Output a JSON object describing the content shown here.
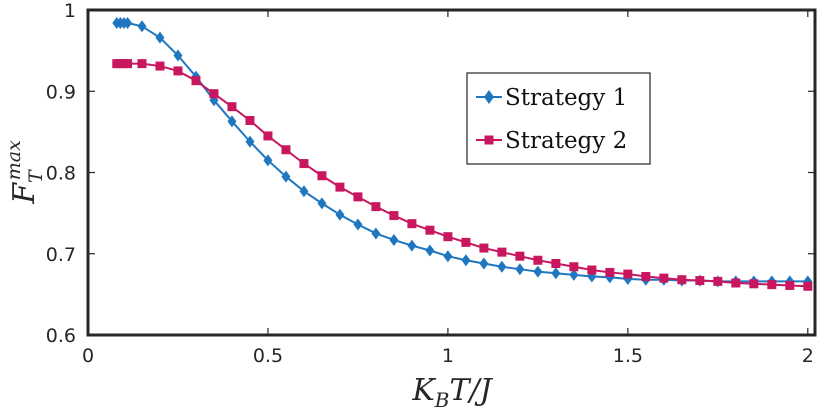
{
  "chart_data": {
    "type": "line",
    "title": "",
    "xlabel": "K_BT/J",
    "ylabel": "F_T^max",
    "xlim": [
      0,
      2.02
    ],
    "ylim": [
      0.6,
      1.0
    ],
    "grid": false,
    "legend_position": "top-right",
    "x_ticks": [
      {
        "value": 0,
        "label": "0"
      },
      {
        "value": 0.5,
        "label": "0.5"
      },
      {
        "value": 1,
        "label": "1"
      },
      {
        "value": 1.5,
        "label": "1.5"
      },
      {
        "value": 2,
        "label": "2"
      }
    ],
    "y_ticks": [
      {
        "value": 0.6,
        "label": "0.6"
      },
      {
        "value": 0.7,
        "label": "0.7"
      },
      {
        "value": 0.8,
        "label": "0.8"
      },
      {
        "value": 0.9,
        "label": "0.9"
      },
      {
        "value": 1.0,
        "label": "1"
      }
    ],
    "series": [
      {
        "name": "Strategy 1",
        "color": "#1f77c0",
        "marker": "diamond",
        "x": [
          0.08,
          0.09,
          0.1,
          0.11,
          0.15,
          0.2,
          0.25,
          0.3,
          0.35,
          0.4,
          0.45,
          0.5,
          0.55,
          0.6,
          0.65,
          0.7,
          0.75,
          0.8,
          0.85,
          0.9,
          0.95,
          1.0,
          1.05,
          1.1,
          1.15,
          1.2,
          1.25,
          1.3,
          1.35,
          1.4,
          1.45,
          1.5,
          1.55,
          1.6,
          1.65,
          1.7,
          1.75,
          1.8,
          1.85,
          1.9,
          1.95,
          2.0
        ],
        "y": [
          0.984,
          0.984,
          0.984,
          0.984,
          0.98,
          0.966,
          0.944,
          0.918,
          0.889,
          0.863,
          0.838,
          0.815,
          0.795,
          0.777,
          0.762,
          0.748,
          0.736,
          0.725,
          0.717,
          0.71,
          0.704,
          0.697,
          0.692,
          0.688,
          0.684,
          0.681,
          0.678,
          0.676,
          0.674,
          0.672,
          0.671,
          0.669,
          0.668,
          0.668,
          0.667,
          0.667,
          0.666,
          0.666,
          0.666,
          0.666,
          0.666,
          0.666
        ]
      },
      {
        "name": "Strategy 2",
        "color": "#c8175f",
        "marker": "square",
        "x": [
          0.08,
          0.09,
          0.1,
          0.11,
          0.15,
          0.2,
          0.25,
          0.3,
          0.35,
          0.4,
          0.45,
          0.5,
          0.55,
          0.6,
          0.65,
          0.7,
          0.75,
          0.8,
          0.85,
          0.9,
          0.95,
          1.0,
          1.05,
          1.1,
          1.15,
          1.2,
          1.25,
          1.3,
          1.35,
          1.4,
          1.45,
          1.5,
          1.55,
          1.6,
          1.65,
          1.7,
          1.75,
          1.8,
          1.85,
          1.9,
          1.95,
          2.0
        ],
        "y": [
          0.934,
          0.934,
          0.934,
          0.934,
          0.934,
          0.931,
          0.925,
          0.913,
          0.897,
          0.881,
          0.864,
          0.845,
          0.828,
          0.811,
          0.796,
          0.782,
          0.77,
          0.758,
          0.747,
          0.737,
          0.729,
          0.721,
          0.714,
          0.707,
          0.702,
          0.697,
          0.692,
          0.688,
          0.684,
          0.68,
          0.677,
          0.675,
          0.672,
          0.67,
          0.668,
          0.667,
          0.666,
          0.664,
          0.663,
          0.662,
          0.661,
          0.66
        ]
      }
    ]
  }
}
